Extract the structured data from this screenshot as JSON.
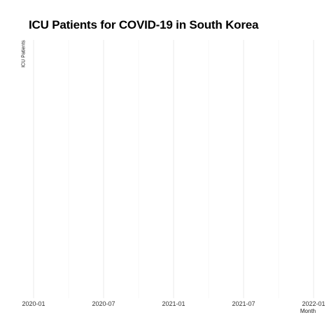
{
  "chart_data": {
    "type": "line",
    "title": "ICU Patients for COVID-19 in South Korea",
    "xlabel": "Month",
    "ylabel": "ICU Patients",
    "x_ticks": [
      "2020-01",
      "2020-07",
      "2021-01",
      "2021-07",
      "2022-01"
    ],
    "xlim": [
      "2020-01",
      "2022-01"
    ],
    "series": [],
    "grid": true,
    "legend": "none"
  },
  "colors": {
    "background": "#ffffff",
    "grid_major": "#ebebeb",
    "grid_minor": "#f2f2f2",
    "text": "#000000"
  }
}
